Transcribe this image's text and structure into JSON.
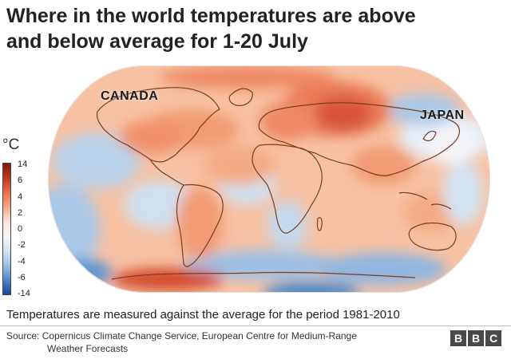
{
  "title": "Where in the world temperatures are above\nand below average for 1-20 July",
  "map": {
    "labels": {
      "canada": "CANADA",
      "japan": "JAPAN"
    },
    "colors": {
      "ocean_warm": "#f7c2a4",
      "land_warm": "#f29b74",
      "hot": "#d4482a",
      "cool": "#b9d3ec",
      "cold": "#5f95d0",
      "neutral": "#f4f0ef",
      "coastline": "#7a3d1c"
    }
  },
  "legend": {
    "unit": "°C",
    "ticks": [
      "14",
      "6",
      "4",
      "2",
      "0",
      "-2",
      "-4",
      "-6",
      "-14"
    ],
    "colors": [
      "#7d1a0d",
      "#c0391f",
      "#e8714a",
      "#f4aa85",
      "#fbe6da",
      "#f6f6f6",
      "#d3e3f2",
      "#9cc0e5",
      "#4f88c8",
      "#16479b"
    ]
  },
  "footnote": "Temperatures are measured against the average for the period 1981-2010",
  "source": {
    "line1": "Source: Copernicus Climate Change Service, European Centre for Medium-Range",
    "line2": "Weather Forecasts"
  },
  "brand": {
    "letters": [
      "B",
      "B",
      "C"
    ]
  }
}
